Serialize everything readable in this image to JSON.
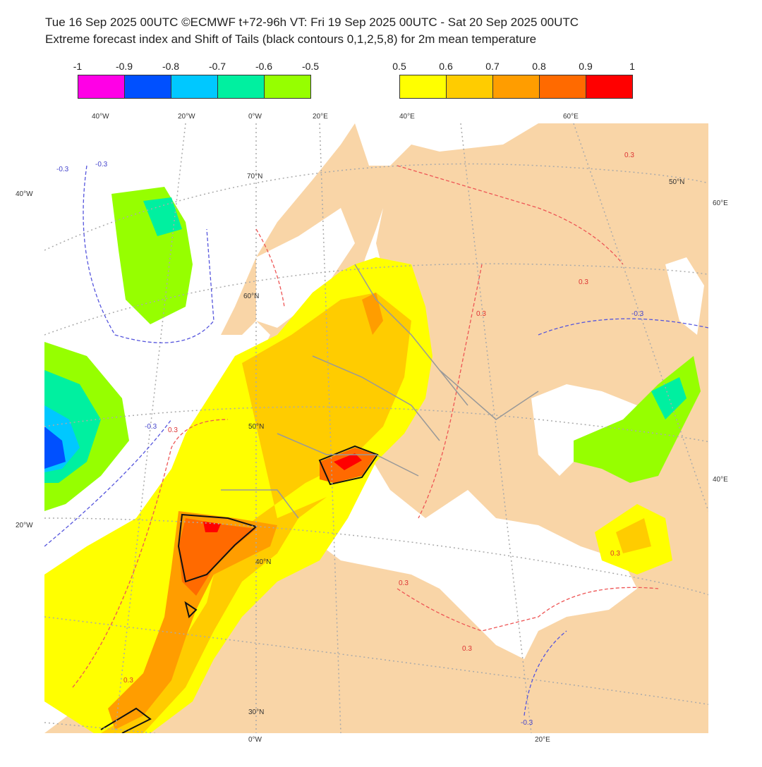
{
  "header": {
    "line1": "Tue 16 Sep 2025 00UTC ©ECMWF t+72-96h  VT: Fri 19 Sep 2025 00UTC - Sat 20 Sep 2025 00UTC",
    "line2": "Extreme forecast index and Shift of Tails (black contours 0,1,2,5,8) for 2m mean temperature"
  },
  "legend_negative": {
    "ticks": [
      "-1",
      "-0.9",
      "-0.8",
      "-0.7",
      "-0.6",
      "-0.5"
    ],
    "colors": [
      "#ff00e6",
      "#0050ff",
      "#00c8ff",
      "#00f0a0",
      "#96ff00"
    ]
  },
  "legend_positive": {
    "ticks": [
      "0.5",
      "0.6",
      "0.7",
      "0.8",
      "0.9",
      "1"
    ],
    "colors": [
      "#ffff00",
      "#ffcc00",
      "#ff9d00",
      "#ff6a00",
      "#ff0000"
    ]
  },
  "map": {
    "land_color": "#f9d5a7",
    "sea_color": "#ffffff",
    "grid_labels_top": [
      "40°W",
      "20°W",
      "0°W",
      "20°E",
      "40°E",
      "60°E"
    ],
    "grid_labels_left": [
      "40°W",
      "20°W"
    ],
    "grid_labels_right": [
      "60°E",
      "40°E"
    ],
    "grid_labels_bottom": [
      "0°W",
      "20°E"
    ],
    "lat_labels": [
      "70°N",
      "60°N",
      "50°N",
      "40°N",
      "30°N",
      "50°N"
    ],
    "contour_labels": [
      "-0.3",
      "-0.3",
      "-0.3",
      "0.3",
      "0.3",
      "0.3",
      "0.3",
      "0.3",
      "0.3",
      "-0.3",
      "0.3",
      "0.3",
      "-0.3"
    ]
  }
}
